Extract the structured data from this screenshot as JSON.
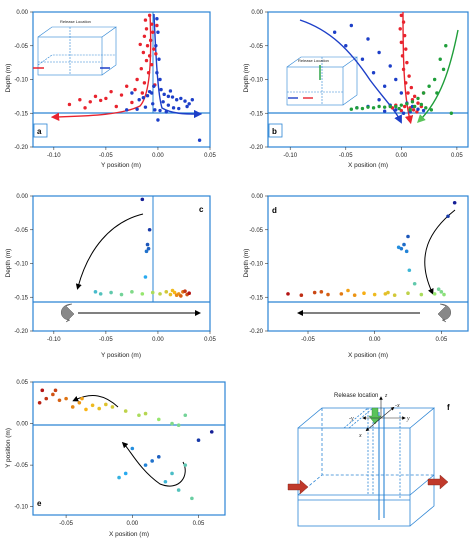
{
  "chart_data": [
    {
      "type": "scatter",
      "panel": "a",
      "xlabel": "Y position (m)",
      "ylabel": "Depth (m)",
      "xlim": [
        -0.12,
        0.05
      ],
      "ylim": [
        -0.2,
        0.0
      ],
      "xticks": [
        "-0.10",
        "-0.05",
        "0.00",
        "0.05"
      ],
      "yticks": [
        "0.00",
        "-0.05",
        "-0.10",
        "-0.15",
        "-0.20"
      ],
      "interface_depth": -0.15,
      "inset_label": "Release Location",
      "series": [
        {
          "color": "#e8232e",
          "points": [
            [
              -0.008,
              -0.005
            ],
            [
              -0.012,
              -0.012
            ],
            [
              -0.006,
              -0.018
            ],
            [
              -0.011,
              -0.025
            ],
            [
              -0.005,
              -0.03
            ],
            [
              -0.013,
              -0.036
            ],
            [
              -0.007,
              -0.042
            ],
            [
              -0.01,
              -0.05
            ],
            [
              -0.004,
              -0.055
            ],
            [
              -0.014,
              -0.06
            ],
            [
              -0.008,
              -0.065
            ],
            [
              -0.011,
              -0.072
            ],
            [
              -0.006,
              -0.078
            ],
            [
              -0.016,
              -0.084
            ],
            [
              -0.009,
              -0.09
            ],
            [
              -0.02,
              -0.1
            ],
            [
              -0.013,
              -0.105
            ],
            [
              -0.03,
              -0.11
            ],
            [
              -0.022,
              -0.115
            ],
            [
              -0.045,
              -0.118
            ],
            [
              -0.035,
              -0.123
            ],
            [
              -0.06,
              -0.125
            ],
            [
              -0.05,
              -0.128
            ],
            [
              -0.075,
              -0.13
            ],
            [
              -0.065,
              -0.133
            ],
            [
              -0.085,
              -0.137
            ],
            [
              -0.04,
              -0.14
            ],
            [
              -0.025,
              -0.134
            ],
            [
              -0.015,
              -0.12
            ],
            [
              -0.003,
              -0.108
            ],
            [
              -0.07,
              -0.142
            ],
            [
              -0.002,
              -0.062
            ],
            [
              -0.017,
              -0.048
            ],
            [
              -0.001,
              -0.02
            ],
            [
              -0.055,
              -0.131
            ]
          ]
        },
        {
          "color": "#1d3fc8",
          "points": [
            [
              -0.001,
              -0.01
            ],
            [
              0.0,
              -0.03
            ],
            [
              -0.002,
              -0.05
            ],
            [
              0.001,
              -0.07
            ],
            [
              -0.001,
              -0.09
            ],
            [
              0.002,
              -0.1
            ],
            [
              -0.004,
              -0.11
            ],
            [
              0.003,
              -0.115
            ],
            [
              -0.006,
              -0.12
            ],
            [
              0.006,
              -0.122
            ],
            [
              -0.01,
              -0.124
            ],
            [
              0.01,
              -0.125
            ],
            [
              -0.014,
              -0.127
            ],
            [
              0.014,
              -0.126
            ],
            [
              0.018,
              -0.13
            ],
            [
              0.022,
              -0.128
            ],
            [
              0.026,
              -0.132
            ],
            [
              -0.018,
              -0.13
            ],
            [
              0.005,
              -0.133
            ],
            [
              -0.005,
              -0.136
            ],
            [
              0.01,
              -0.138
            ],
            [
              -0.012,
              -0.141
            ],
            [
              0.015,
              -0.142
            ],
            [
              -0.02,
              -0.144
            ],
            [
              0.02,
              -0.143
            ],
            [
              0.028,
              -0.14
            ],
            [
              -0.025,
              -0.12
            ],
            [
              0.03,
              -0.136
            ],
            [
              0.002,
              -0.146
            ],
            [
              -0.03,
              -0.145
            ],
            [
              0.008,
              -0.148
            ],
            [
              0.033,
              -0.13
            ],
            [
              -0.008,
              -0.118
            ],
            [
              0.012,
              -0.117
            ],
            [
              0.0,
              -0.16
            ],
            [
              -0.003,
              -0.145
            ],
            [
              0.04,
              -0.19
            ]
          ]
        }
      ]
    },
    {
      "type": "scatter",
      "panel": "b",
      "xlabel": "X position (m)",
      "ylabel": "Depth (m)",
      "xlim": [
        -0.12,
        0.06
      ],
      "ylim": [
        -0.2,
        0.0
      ],
      "xticks": [
        "-0.10",
        "-0.05",
        "0.00",
        "0.05"
      ],
      "yticks": [
        "0.00",
        "-0.05",
        "-0.10",
        "-0.15",
        "-0.20"
      ],
      "interface_depth": -0.15,
      "inset_label": "Release Location",
      "series": [
        {
          "color": "#e8232e",
          "points": [
            [
              0.0,
              -0.005
            ],
            [
              0.002,
              -0.015
            ],
            [
              -0.001,
              -0.025
            ],
            [
              0.003,
              -0.035
            ],
            [
              0.0,
              -0.045
            ],
            [
              0.004,
              -0.055
            ],
            [
              0.001,
              -0.065
            ],
            [
              0.005,
              -0.075
            ],
            [
              0.002,
              -0.085
            ],
            [
              0.007,
              -0.095
            ],
            [
              0.004,
              -0.105
            ],
            [
              0.009,
              -0.112
            ],
            [
              0.006,
              -0.12
            ],
            [
              0.012,
              -0.125
            ],
            [
              0.01,
              -0.13
            ],
            [
              0.015,
              -0.135
            ],
            [
              0.003,
              -0.14
            ],
            [
              0.008,
              -0.142
            ],
            [
              -0.005,
              -0.138
            ],
            [
              0.018,
              -0.14
            ],
            [
              0.011,
              -0.145
            ],
            [
              0.0,
              -0.146
            ],
            [
              0.02,
              -0.12
            ],
            [
              -0.008,
              -0.142
            ],
            [
              0.014,
              -0.148
            ]
          ]
        },
        {
          "color": "#1d3fc8",
          "points": [
            [
              -0.06,
              -0.03
            ],
            [
              -0.045,
              -0.02
            ],
            [
              -0.03,
              -0.04
            ],
            [
              -0.05,
              -0.05
            ],
            [
              -0.02,
              -0.06
            ],
            [
              -0.035,
              -0.07
            ],
            [
              -0.01,
              -0.08
            ],
            [
              -0.025,
              -0.09
            ],
            [
              -0.005,
              -0.1
            ],
            [
              -0.015,
              -0.11
            ],
            [
              0.0,
              -0.12
            ],
            [
              -0.02,
              -0.13
            ],
            [
              0.005,
              -0.135
            ],
            [
              -0.01,
              -0.138
            ],
            [
              0.01,
              -0.14
            ],
            [
              -0.03,
              -0.14
            ],
            [
              0.015,
              -0.144
            ],
            [
              -0.005,
              -0.145
            ],
            [
              0.02,
              -0.146
            ],
            [
              -0.04,
              -0.142
            ],
            [
              0.002,
              -0.15
            ],
            [
              0.008,
              -0.148
            ],
            [
              -0.015,
              -0.147
            ]
          ]
        },
        {
          "color": "#1f9e3a",
          "points": [
            [
              0.04,
              -0.05
            ],
            [
              0.035,
              -0.07
            ],
            [
              0.038,
              -0.085
            ],
            [
              0.03,
              -0.1
            ],
            [
              0.025,
              -0.11
            ],
            [
              0.02,
              -0.12
            ],
            [
              0.015,
              -0.128
            ],
            [
              0.01,
              -0.133
            ],
            [
              0.005,
              -0.136
            ],
            [
              0.0,
              -0.138
            ],
            [
              -0.005,
              -0.14
            ],
            [
              -0.01,
              -0.14
            ],
            [
              -0.015,
              -0.141
            ],
            [
              -0.02,
              -0.14
            ],
            [
              -0.025,
              -0.142
            ],
            [
              -0.03,
              -0.141
            ],
            [
              -0.035,
              -0.143
            ],
            [
              -0.04,
              -0.142
            ],
            [
              -0.045,
              -0.144
            ],
            [
              0.012,
              -0.14
            ],
            [
              0.018,
              -0.137
            ],
            [
              0.022,
              -0.142
            ],
            [
              0.027,
              -0.145
            ],
            [
              0.008,
              -0.145
            ],
            [
              -0.002,
              -0.143
            ],
            [
              0.032,
              -0.12
            ],
            [
              0.045,
              -0.15
            ]
          ]
        }
      ]
    },
    {
      "type": "scatter",
      "panel": "c",
      "xlabel": "Y position (m)",
      "ylabel": "Depth (m)",
      "xlim": [
        -0.12,
        0.05
      ],
      "ylim": [
        -0.2,
        0.0
      ],
      "xticks": [
        "-0.10",
        "-0.05",
        "0.00",
        "0.05"
      ],
      "yticks": [
        "0.00",
        "-0.05",
        "-0.10",
        "-0.15",
        "-0.20"
      ],
      "interface_depth": -0.15,
      "release_y": -0.005,
      "points": [
        [
          -0.015,
          -0.005,
          0.0
        ],
        [
          -0.008,
          -0.05,
          0.05
        ],
        [
          -0.01,
          -0.072,
          0.1
        ],
        [
          -0.009,
          -0.078,
          0.12
        ],
        [
          -0.011,
          -0.082,
          0.15
        ],
        [
          -0.012,
          -0.12,
          0.25
        ],
        [
          -0.06,
          -0.142,
          0.32
        ],
        [
          -0.055,
          -0.145,
          0.35
        ],
        [
          -0.045,
          -0.143,
          0.38
        ],
        [
          -0.035,
          -0.146,
          0.42
        ],
        [
          -0.025,
          -0.142,
          0.45
        ],
        [
          -0.015,
          -0.145,
          0.5
        ],
        [
          -0.005,
          -0.143,
          0.55
        ],
        [
          0.002,
          -0.145,
          0.6
        ],
        [
          0.008,
          -0.142,
          0.65
        ],
        [
          0.012,
          -0.146,
          0.7
        ],
        [
          0.016,
          -0.143,
          0.75
        ],
        [
          0.02,
          -0.145,
          0.8
        ],
        [
          0.024,
          -0.142,
          0.85
        ],
        [
          0.028,
          -0.146,
          0.9
        ],
        [
          0.014,
          -0.14,
          0.72
        ],
        [
          0.018,
          -0.147,
          0.82
        ],
        [
          0.022,
          -0.148,
          0.88
        ],
        [
          0.026,
          -0.141,
          0.95
        ],
        [
          0.03,
          -0.144,
          1.0
        ]
      ]
    },
    {
      "type": "scatter",
      "panel": "d",
      "xlabel": "X position (m)",
      "ylabel": "Depth (m)",
      "xlim": [
        -0.08,
        0.07
      ],
      "ylim": [
        -0.2,
        0.0
      ],
      "xticks": [
        "-0.05",
        "0.00",
        "0.05"
      ],
      "yticks": [
        "0.00",
        "-0.05",
        "-0.10",
        "-0.15",
        "-0.20"
      ],
      "interface_depth": -0.15,
      "points": [
        [
          0.06,
          -0.01,
          0.0
        ],
        [
          0.055,
          -0.03,
          0.05
        ],
        [
          0.025,
          -0.06,
          0.1
        ],
        [
          0.022,
          -0.072,
          0.14
        ],
        [
          0.02,
          -0.078,
          0.16
        ],
        [
          0.024,
          -0.082,
          0.18
        ],
        [
          0.018,
          -0.076,
          0.2
        ],
        [
          0.026,
          -0.11,
          0.3
        ],
        [
          0.03,
          -0.13,
          0.38
        ],
        [
          0.048,
          -0.138,
          0.42
        ],
        [
          0.05,
          -0.142,
          0.45
        ],
        [
          0.052,
          -0.146,
          0.48
        ],
        [
          0.045,
          -0.145,
          0.5
        ],
        [
          0.035,
          -0.146,
          0.55
        ],
        [
          0.025,
          -0.144,
          0.6
        ],
        [
          0.015,
          -0.147,
          0.65
        ],
        [
          0.008,
          -0.145,
          0.7
        ],
        [
          0.0,
          -0.146,
          0.72
        ],
        [
          -0.008,
          -0.144,
          0.76
        ],
        [
          -0.015,
          -0.147,
          0.8
        ],
        [
          -0.025,
          -0.145,
          0.84
        ],
        [
          -0.035,
          -0.146,
          0.88
        ],
        [
          -0.045,
          -0.143,
          0.92
        ],
        [
          -0.055,
          -0.147,
          0.96
        ],
        [
          -0.065,
          -0.145,
          1.0
        ],
        [
          -0.02,
          -0.14,
          0.78
        ],
        [
          -0.04,
          -0.142,
          0.9
        ],
        [
          0.01,
          -0.143,
          0.68
        ]
      ]
    },
    {
      "type": "scatter",
      "panel": "e",
      "xlabel": "X position (m)",
      "ylabel": "Y position (m)",
      "xlim": [
        -0.075,
        0.07
      ],
      "ylim": [
        -0.11,
        0.05
      ],
      "xticks": [
        "-0.05",
        "0.00",
        "0.05"
      ],
      "yticks": [
        "0.05",
        "0.00",
        "-0.05",
        "-0.10"
      ],
      "release_y": -0.005,
      "points": [
        [
          0.06,
          -0.01,
          0.0
        ],
        [
          0.05,
          -0.02,
          0.05
        ],
        [
          0.02,
          -0.04,
          0.12
        ],
        [
          0.015,
          -0.045,
          0.15
        ],
        [
          0.01,
          -0.05,
          0.18
        ],
        [
          -0.005,
          -0.06,
          0.25
        ],
        [
          -0.01,
          -0.065,
          0.28
        ],
        [
          0.0,
          -0.03,
          0.2
        ],
        [
          0.025,
          -0.07,
          0.3
        ],
        [
          0.035,
          -0.08,
          0.35
        ],
        [
          0.03,
          -0.06,
          0.33
        ],
        [
          0.04,
          -0.05,
          0.37
        ],
        [
          0.045,
          -0.09,
          0.4
        ],
        [
          0.03,
          0.0,
          0.45
        ],
        [
          0.02,
          0.005,
          0.5
        ],
        [
          0.005,
          0.01,
          0.55
        ],
        [
          -0.005,
          0.015,
          0.6
        ],
        [
          -0.015,
          0.02,
          0.65
        ],
        [
          -0.025,
          0.018,
          0.7
        ],
        [
          -0.03,
          0.022,
          0.72
        ],
        [
          -0.035,
          0.017,
          0.75
        ],
        [
          -0.04,
          0.025,
          0.8
        ],
        [
          -0.045,
          0.02,
          0.82
        ],
        [
          -0.05,
          0.03,
          0.85
        ],
        [
          -0.055,
          0.028,
          0.88
        ],
        [
          -0.06,
          0.035,
          0.9
        ],
        [
          -0.065,
          0.03,
          0.95
        ],
        [
          -0.07,
          0.025,
          0.98
        ],
        [
          -0.068,
          0.04,
          1.0
        ],
        [
          -0.058,
          0.04,
          0.93
        ],
        [
          -0.038,
          0.03,
          0.78
        ],
        [
          -0.02,
          0.023,
          0.68
        ],
        [
          0.01,
          0.012,
          0.58
        ],
        [
          0.04,
          0.01,
          0.42
        ],
        [
          0.035,
          -0.002,
          0.44
        ]
      ]
    },
    {
      "type": "diagram",
      "panel": "f",
      "label": "Release location",
      "axes": [
        "z",
        "-x",
        "-y",
        "y",
        "x"
      ]
    }
  ]
}
